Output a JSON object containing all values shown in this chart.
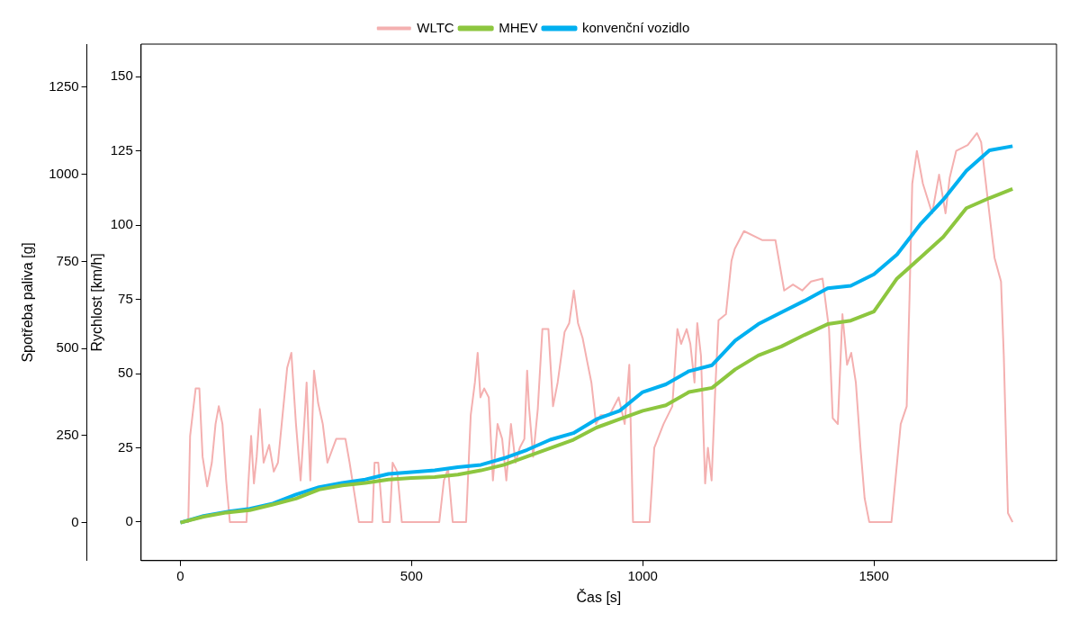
{
  "chart_data": {
    "type": "line",
    "xlabel": "Čas [s]",
    "ylabel": "Spotřeba paliva [g]",
    "y2label": "Rychlost [km/h]",
    "xlim": [
      -85,
      1895
    ],
    "xticks": [
      0,
      500,
      1000,
      1500
    ],
    "ylim": [
      -109,
      1374
    ],
    "yticks": [
      0,
      250,
      500,
      750,
      1000,
      1250
    ],
    "y2lim": [
      -13,
      161
    ],
    "y2ticks": [
      0,
      25,
      50,
      75,
      100,
      125,
      150
    ],
    "grid": false,
    "legend": "top",
    "marker": "none",
    "line_style": "solid",
    "series": [
      {
        "name": "WLTC",
        "color": "#f4b0b0",
        "axis": "y2",
        "x": [
          0,
          17,
          21,
          33,
          41,
          48,
          58,
          68,
          76,
          83,
          91,
          99,
          107,
          143,
          147,
          153,
          159,
          165,
          172,
          180,
          192,
          202,
          211,
          221,
          231,
          240,
          250,
          260,
          269,
          273,
          281,
          289,
          298,
          308,
          318,
          337,
          357,
          366,
          376,
          386,
          415,
          420,
          428,
          438,
          453,
          459,
          469,
          479,
          560,
          570,
          579,
          589,
          618,
          628,
          637,
          643,
          649,
          657,
          667,
          676,
          686,
          696,
          705,
          715,
          725,
          734,
          744,
          750,
          754,
          763,
          773,
          783,
          796,
          806,
          816,
          831,
          841,
          851,
          860,
          870,
          880,
          889,
          899,
          909,
          928,
          948,
          961,
          971,
          979,
          1015,
          1025,
          1045,
          1064,
          1075,
          1083,
          1095,
          1103,
          1112,
          1118,
          1126,
          1135,
          1141,
          1149,
          1157,
          1164,
          1180,
          1192,
          1199,
          1219,
          1258,
          1287,
          1306,
          1325,
          1345,
          1364,
          1389,
          1403,
          1411,
          1422,
          1432,
          1442,
          1451,
          1461,
          1471,
          1480,
          1490,
          1538,
          1558,
          1571,
          1577,
          1583,
          1593,
          1606,
          1616,
          1626,
          1641,
          1655,
          1664,
          1678,
          1703,
          1723,
          1732,
          1746,
          1761,
          1775,
          1781,
          1790,
          1800
        ],
        "values": [
          0,
          0,
          29,
          45,
          45,
          22,
          12,
          20,
          33,
          39,
          33,
          14,
          0,
          0,
          13,
          29,
          13,
          22,
          38,
          20,
          26,
          17,
          20,
          36,
          52,
          57,
          33,
          14,
          36,
          47,
          14,
          51,
          40,
          33,
          20,
          28,
          28,
          20,
          10,
          0,
          0,
          20,
          20,
          0,
          0,
          20,
          17,
          0,
          0,
          14,
          18,
          0,
          0,
          36,
          47,
          57,
          42,
          45,
          42,
          14,
          33,
          28,
          14,
          33,
          20,
          25,
          28,
          51,
          39,
          22,
          38,
          65,
          65,
          39,
          47,
          64,
          67,
          78,
          67,
          62,
          54,
          47,
          33,
          36,
          36,
          42,
          33,
          53,
          0,
          0,
          25,
          33,
          39,
          65,
          60,
          65,
          60,
          47,
          67,
          56,
          13,
          25,
          14,
          45,
          68,
          70,
          88,
          92,
          98,
          95,
          95,
          78,
          80,
          78,
          81,
          82,
          65,
          35,
          33,
          70,
          53,
          57,
          47,
          25,
          8,
          0,
          0,
          33,
          39,
          75,
          114,
          125,
          114,
          109,
          104,
          117,
          104,
          116,
          125,
          127,
          131,
          128,
          109,
          89,
          81,
          56,
          3,
          0
        ]
      },
      {
        "name": "MHEV",
        "color": "#8dc63f",
        "x": [
          0,
          50,
          100,
          150,
          200,
          250,
          300,
          350,
          400,
          450,
          500,
          550,
          600,
          650,
          700,
          750,
          800,
          850,
          900,
          950,
          1000,
          1050,
          1100,
          1150,
          1200,
          1250,
          1300,
          1350,
          1400,
          1450,
          1500,
          1550,
          1600,
          1650,
          1700,
          1750,
          1800
        ],
        "values": [
          0,
          17,
          29,
          36,
          52,
          69,
          95,
          107,
          114,
          124,
          128,
          131,
          138,
          150,
          166,
          190,
          214,
          238,
          273,
          297,
          321,
          337,
          375,
          387,
          440,
          480,
          506,
          539,
          570,
          580,
          606,
          701,
          760,
          820,
          903,
          932,
          958
        ]
      },
      {
        "name": "konvenční vozidlo",
        "color": "#00b0f0",
        "x": [
          0,
          50,
          100,
          150,
          200,
          250,
          300,
          350,
          400,
          450,
          500,
          550,
          600,
          650,
          700,
          750,
          800,
          850,
          900,
          950,
          1000,
          1050,
          1100,
          1150,
          1200,
          1250,
          1300,
          1350,
          1400,
          1450,
          1500,
          1550,
          1600,
          1650,
          1700,
          1750,
          1800
        ],
        "values": [
          0,
          19,
          31,
          40,
          55,
          81,
          102,
          114,
          124,
          140,
          145,
          150,
          159,
          166,
          185,
          209,
          238,
          257,
          297,
          321,
          375,
          397,
          435,
          452,
          523,
          570,
          604,
          637,
          673,
          680,
          713,
          770,
          856,
          927,
          1010,
          1069,
          1081
        ]
      }
    ]
  }
}
